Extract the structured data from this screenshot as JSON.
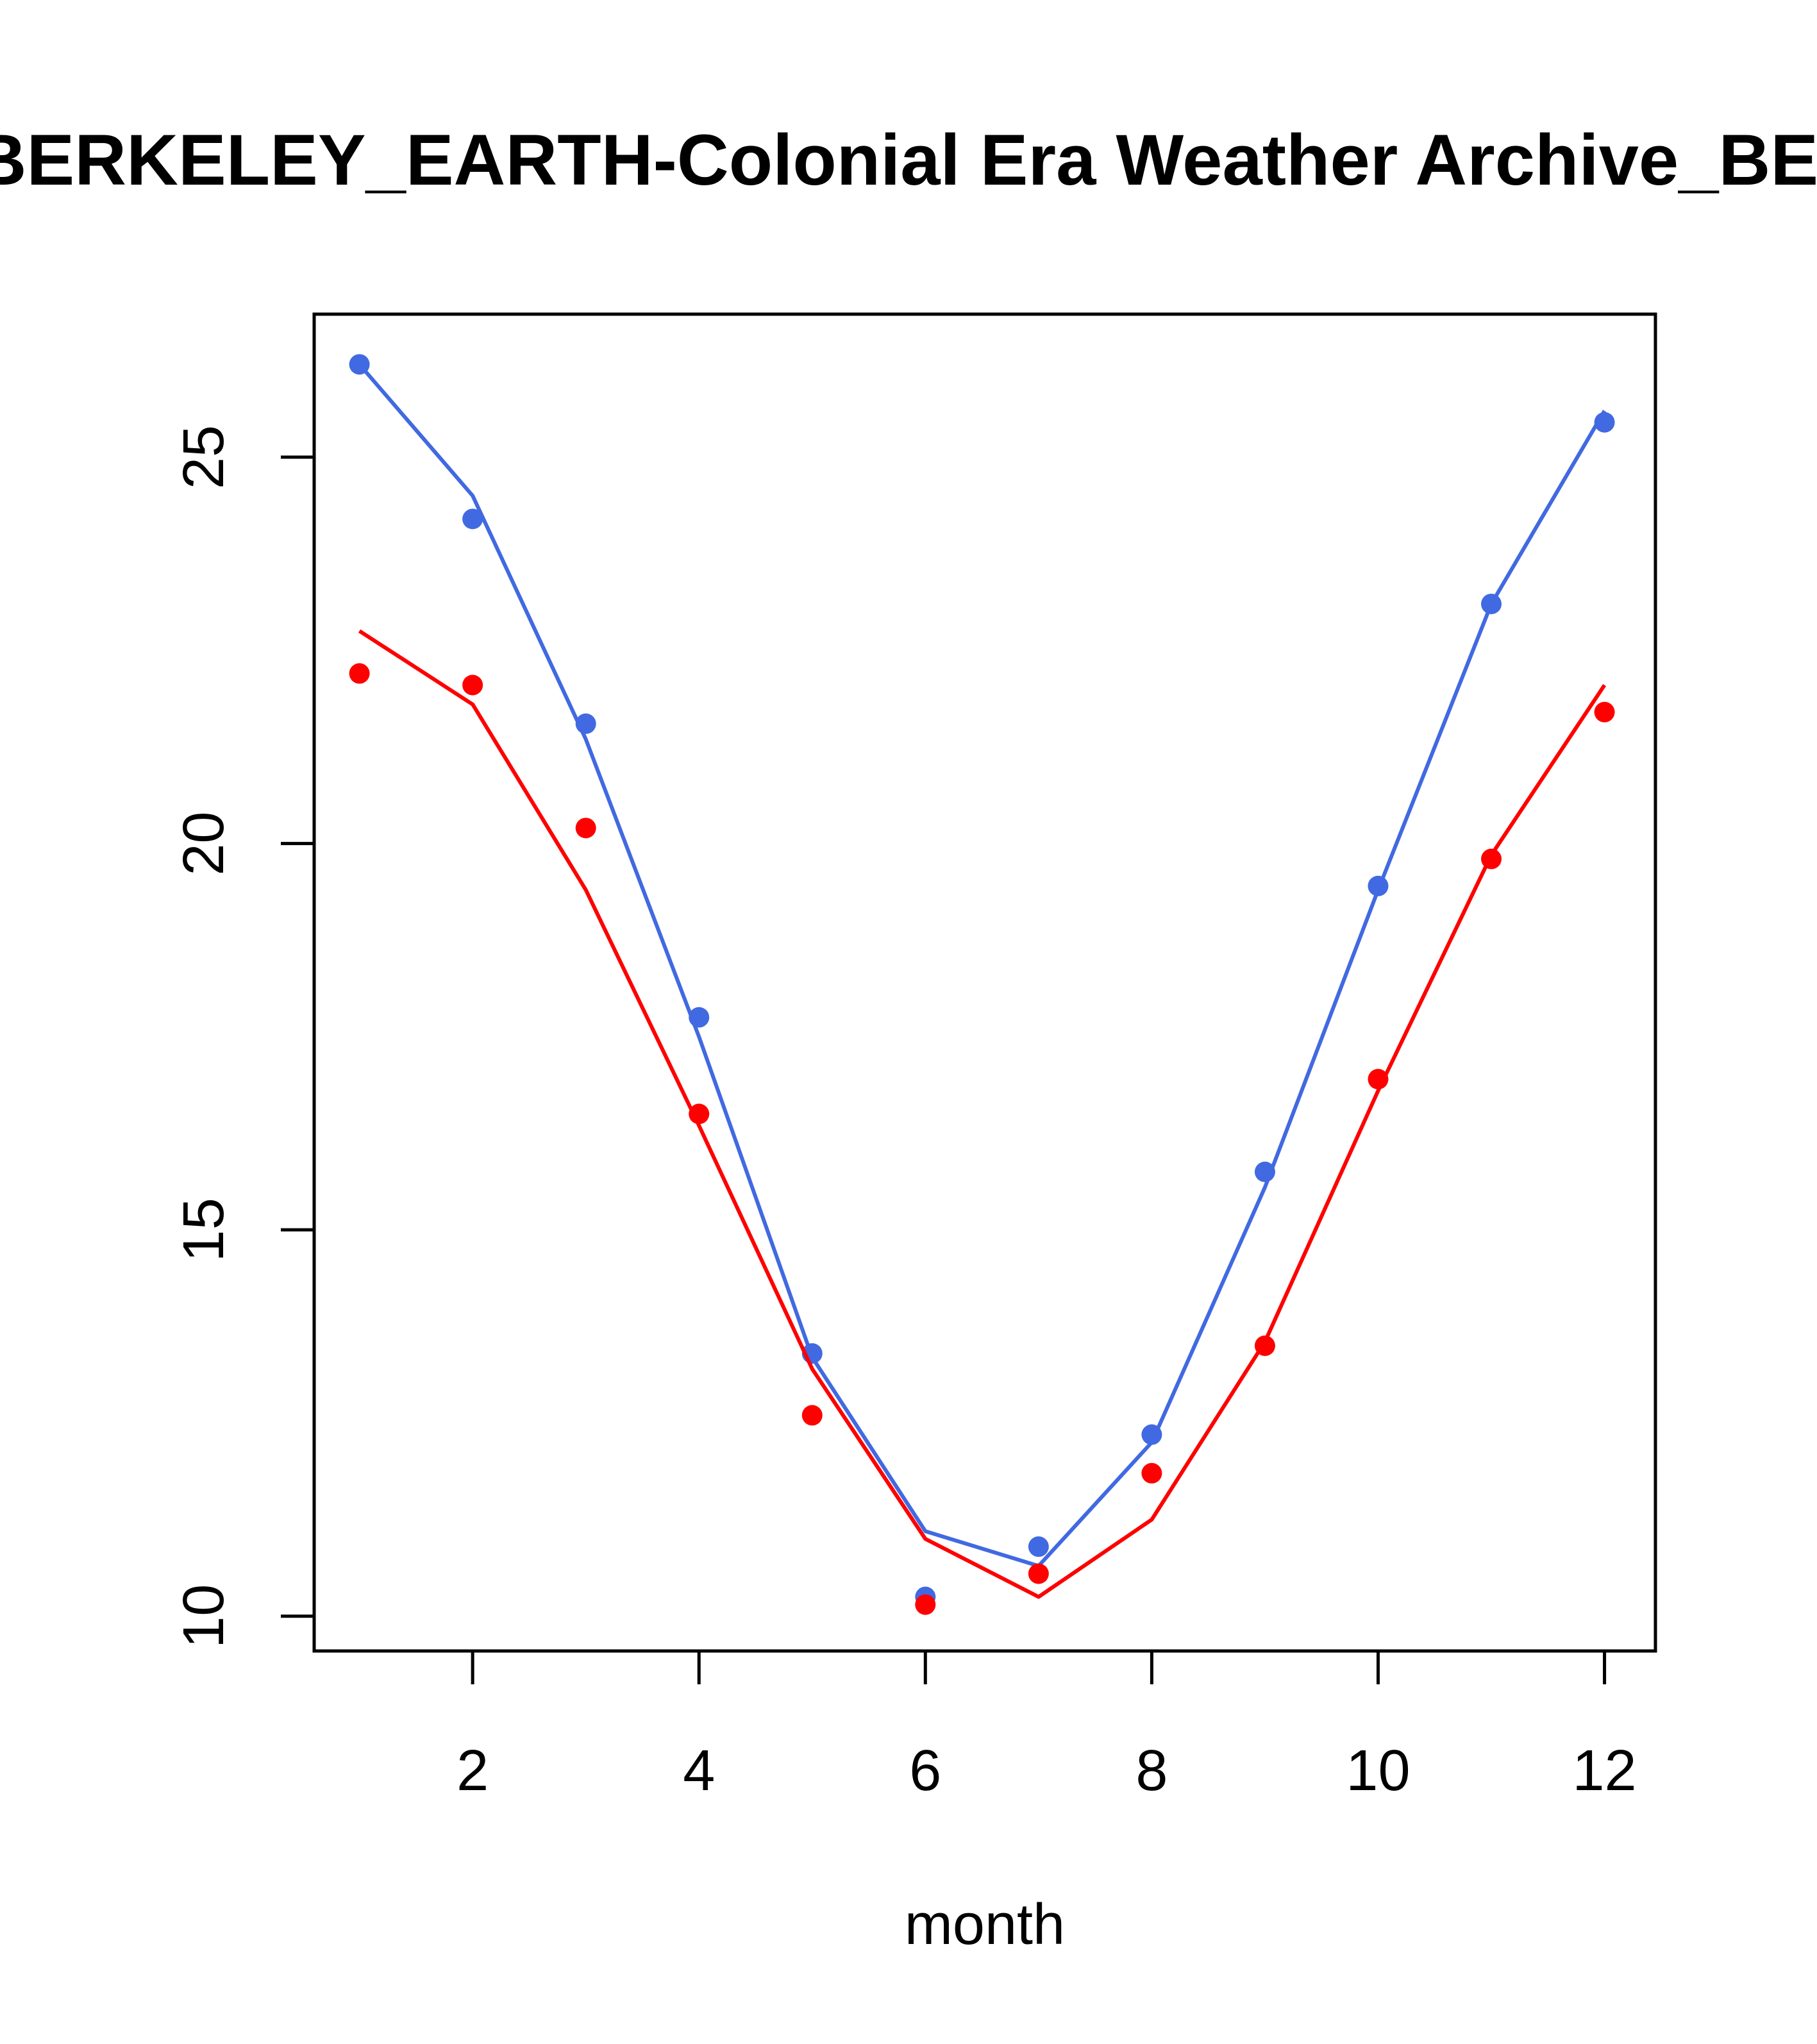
{
  "chart_data": {
    "type": "line",
    "title": "BERKELEY_EARTH-Colonial Era Weather Archive_BE-",
    "xlabel": "month",
    "ylabel": "",
    "xlim": [
      0.6,
      12.45
    ],
    "ylim": [
      9.55,
      26.85
    ],
    "x_ticks": [
      2,
      4,
      6,
      8,
      10,
      12
    ],
    "y_ticks": [
      10,
      15,
      20,
      25
    ],
    "grid": false,
    "legend": "none",
    "x": [
      1,
      2,
      3,
      4,
      5,
      6,
      7,
      8,
      9,
      10,
      11,
      12
    ],
    "series": [
      {
        "color": "#4169E1",
        "points": [
          26.2,
          24.2,
          21.55,
          17.75,
          13.4,
          10.25,
          10.9,
          12.35,
          15.75,
          19.45,
          23.1,
          25.45
        ],
        "line": [
          26.2,
          24.5,
          21.35,
          17.5,
          13.35,
          11.1,
          10.65,
          12.25,
          15.55,
          19.4,
          23.1,
          25.6
        ]
      },
      {
        "color": "#FF0000",
        "points": [
          22.2,
          22.05,
          20.2,
          16.5,
          12.6,
          10.15,
          10.55,
          11.85,
          13.5,
          16.95,
          19.8,
          21.7
        ],
        "line": [
          22.75,
          21.8,
          19.4,
          16.35,
          13.2,
          11.0,
          10.25,
          11.25,
          13.55,
          16.8,
          19.85,
          22.05
        ]
      }
    ]
  }
}
